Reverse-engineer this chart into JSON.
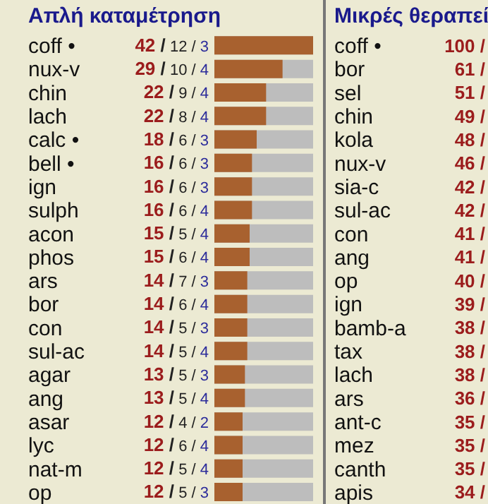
{
  "chart_data": [
    {
      "type": "bar",
      "orientation": "horizontal",
      "title": "Απλή καταμέτρηση",
      "categories": [
        "coff •",
        "nux-v",
        "chin",
        "lach",
        "calc •",
        "bell •",
        "ign",
        "sulph",
        "acon",
        "phos",
        "ars",
        "bor",
        "con",
        "sul-ac",
        "agar",
        "ang",
        "asar",
        "lyc",
        "nat-m",
        "op"
      ],
      "values": [
        42,
        29,
        22,
        22,
        18,
        16,
        16,
        16,
        15,
        15,
        14,
        14,
        14,
        14,
        13,
        13,
        12,
        12,
        12,
        12
      ],
      "value_labels": [
        "42 / 12 / 3",
        "29 / 10 / 4",
        "22 / 9 / 4",
        "22 / 8 / 4",
        "18 / 6 / 3",
        "16 / 6 / 3",
        "16 / 6 / 3",
        "16 / 6 / 4",
        "15 / 5 / 4",
        "15 / 6 / 4",
        "14 / 7 / 3",
        "14 / 6 / 4",
        "14 / 5 / 3",
        "14 / 5 / 4",
        "13 / 5 / 3",
        "13 / 5 / 4",
        "12 / 4 / 2",
        "12 / 6 / 4",
        "12 / 5 / 4",
        "12 / 5 / 3"
      ],
      "color": "#a8612f",
      "xlim": [
        0,
        42
      ],
      "tick_labels": false
    },
    {
      "type": "other",
      "title": "Μικρές θεραπεί",
      "categories": [
        "coff •",
        "bor",
        "sel",
        "chin",
        "kola",
        "nux-v",
        "sia-c",
        "sul-ac",
        "con",
        "ang",
        "op",
        "ign",
        "bamb-a",
        "tax",
        "lach",
        "ars",
        "ant-c",
        "mez",
        "canth",
        "apis"
      ],
      "values": [
        100,
        61,
        51,
        49,
        48,
        46,
        42,
        42,
        41,
        41,
        40,
        39,
        38,
        38,
        38,
        36,
        35,
        35,
        35,
        34
      ],
      "value_labels": [
        "100 /",
        "61 /",
        "51 /",
        "49 /",
        "48 /",
        "46 /",
        "42 /",
        "42 /",
        "41 /",
        "41 /",
        "40 /",
        "39 /",
        "38 /",
        "38 /",
        "38 /",
        "36 /",
        "35 /",
        "35 /",
        "35 /",
        "34 /"
      ]
    }
  ]
}
